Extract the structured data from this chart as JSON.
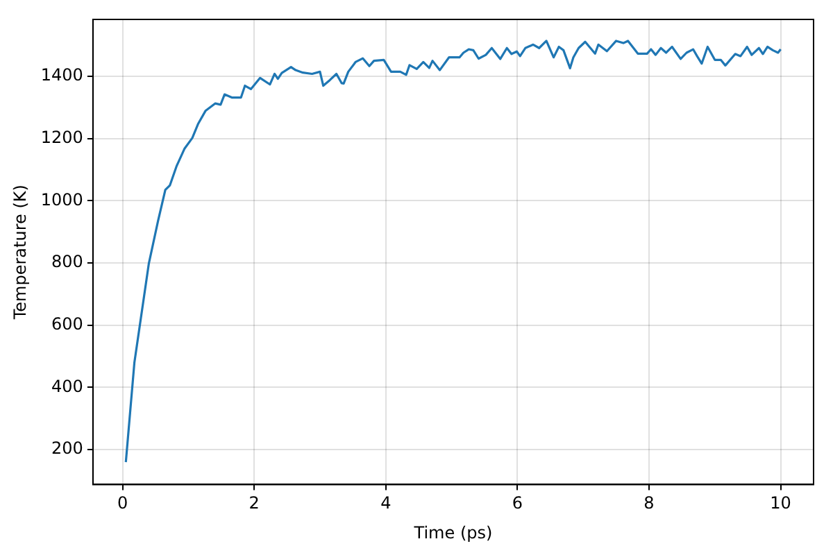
{
  "chart_data": {
    "type": "line",
    "xlabel": "Time (ps)",
    "ylabel": "Temperature (K)",
    "xlim": [
      -0.45,
      10.5
    ],
    "xticks": [
      0,
      2,
      4,
      6,
      8,
      10
    ],
    "ylim": [
      88,
      1583
    ],
    "yticks": [
      200,
      400,
      600,
      800,
      1000,
      1200,
      1400
    ],
    "grid": true,
    "marker": "none",
    "line_style": "solid",
    "series": [
      {
        "color": "#1f77b4",
        "x": [
          0.05,
          0.18,
          0.4,
          0.54,
          0.65,
          0.72,
          0.82,
          0.94,
          1.06,
          1.15,
          1.26,
          1.41,
          1.49,
          1.55,
          1.66,
          1.8,
          1.86,
          1.95,
          2.09,
          2.24,
          2.31,
          2.36,
          2.42,
          2.56,
          2.63,
          2.74,
          2.88,
          3.0,
          3.05,
          3.15,
          3.25,
          3.33,
          3.36,
          3.43,
          3.54,
          3.65,
          3.75,
          3.82,
          3.97,
          4.08,
          4.22,
          4.31,
          4.36,
          4.47,
          4.57,
          4.66,
          4.71,
          4.82,
          4.96,
          5.12,
          5.18,
          5.26,
          5.33,
          5.41,
          5.52,
          5.61,
          5.74,
          5.84,
          5.91,
          5.99,
          6.04,
          6.12,
          6.24,
          6.33,
          6.44,
          6.55,
          6.63,
          6.7,
          6.8,
          6.85,
          6.93,
          7.03,
          7.18,
          7.23,
          7.36,
          7.5,
          7.61,
          7.68,
          7.83,
          7.97,
          8.03,
          8.1,
          8.18,
          8.26,
          8.35,
          8.48,
          8.57,
          8.67,
          8.73,
          8.8,
          8.89,
          9.0,
          9.09,
          9.16,
          9.31,
          9.39,
          9.49,
          9.56,
          9.67,
          9.73,
          9.8,
          9.88,
          9.96,
          10.0
        ],
        "values": [
          160,
          480,
          799,
          936,
          1035,
          1050,
          1111,
          1167,
          1202,
          1248,
          1289,
          1313,
          1309,
          1342,
          1332,
          1332,
          1370,
          1359,
          1395,
          1374,
          1408,
          1392,
          1411,
          1430,
          1420,
          1412,
          1408,
          1415,
          1370,
          1388,
          1408,
          1378,
          1377,
          1415,
          1446,
          1458,
          1433,
          1450,
          1453,
          1415,
          1415,
          1405,
          1436,
          1424,
          1446,
          1427,
          1450,
          1420,
          1461,
          1461,
          1476,
          1487,
          1484,
          1457,
          1469,
          1491,
          1456,
          1491,
          1472,
          1480,
          1465,
          1491,
          1502,
          1491,
          1514,
          1461,
          1495,
          1484,
          1426,
          1461,
          1491,
          1511,
          1473,
          1502,
          1481,
          1514,
          1507,
          1514,
          1473,
          1473,
          1487,
          1469,
          1491,
          1476,
          1495,
          1456,
          1476,
          1487,
          1465,
          1441,
          1495,
          1453,
          1453,
          1435,
          1472,
          1465,
          1495,
          1469,
          1491,
          1472,
          1495,
          1484,
          1476,
          1487
        ]
      }
    ]
  }
}
